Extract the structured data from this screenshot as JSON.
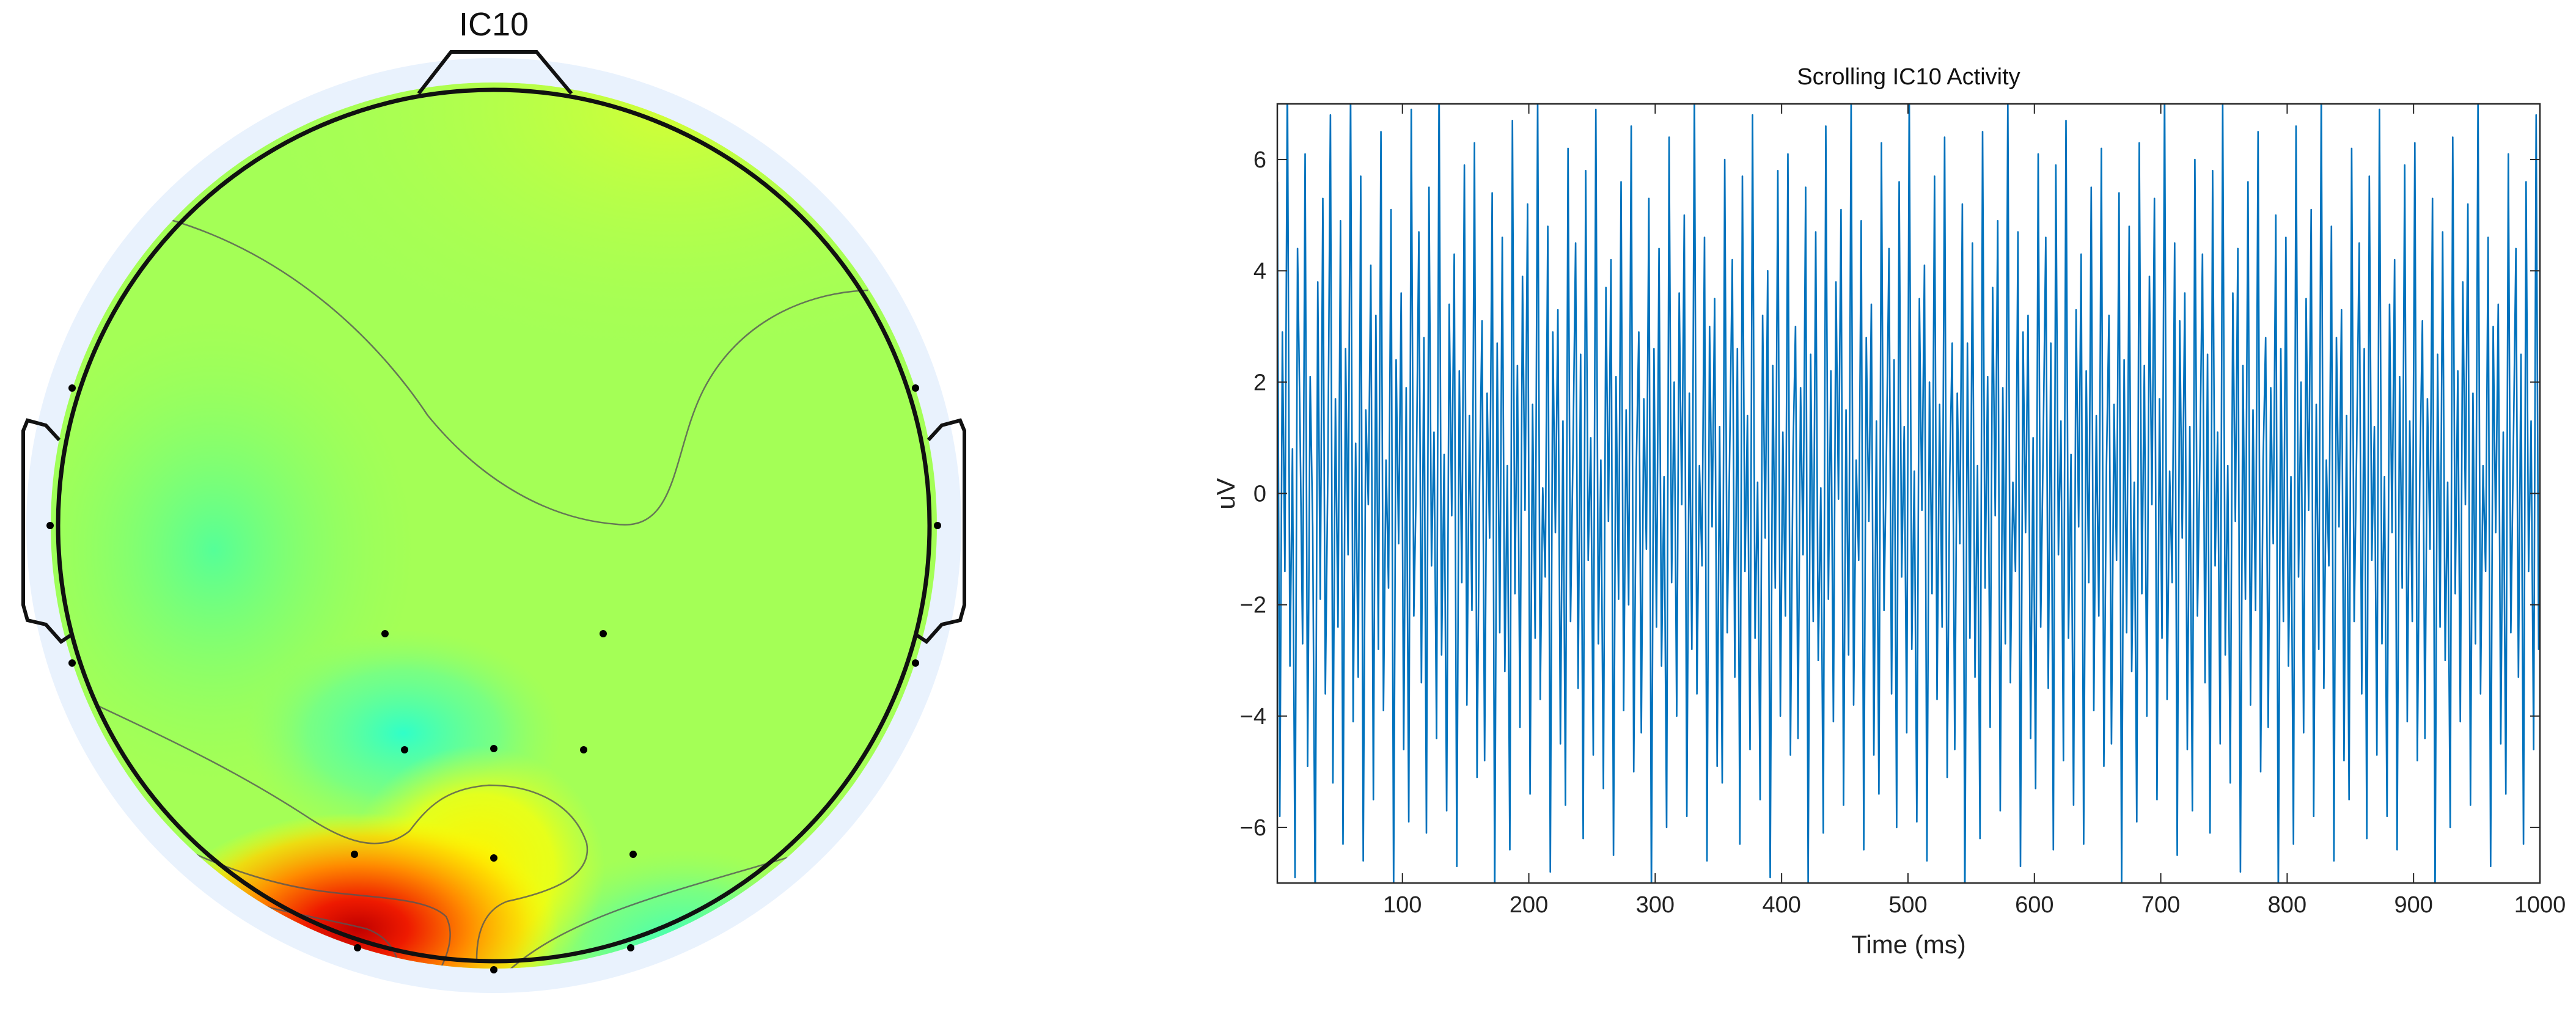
{
  "topoplot": {
    "title": "IC10",
    "colormap": "jet"
  },
  "chart_data": {
    "type": "line",
    "title": "Scrolling IC10 Activity",
    "xlabel": "Time (ms)",
    "ylabel": "uV",
    "xlim": [
      1,
      1000
    ],
    "ylim": [
      -7,
      7
    ],
    "x_ticks": [
      100,
      200,
      300,
      400,
      500,
      600,
      700,
      800,
      900,
      1000
    ],
    "y_ticks": [
      -6,
      -4,
      -2,
      0,
      2,
      4,
      6
    ],
    "grid": false,
    "line_color": "#0072BD",
    "series": [
      {
        "sample_interval_ms": 2,
        "values": [
          5.6,
          -5.8,
          2.9,
          -1.4,
          7.6,
          -3.1,
          0.8,
          -6.9,
          4.4,
          1.2,
          -2.7,
          6.1,
          -4.9,
          2.1,
          -0.6,
          -7.5,
          3.8,
          -1.9,
          5.3,
          -3.6,
          0.4,
          6.8,
          -5.2,
          1.7,
          -2.4,
          4.9,
          -6.3,
          2.6,
          -1.1,
          7.2,
          -4.1,
          0.9,
          -3.3,
          5.7,
          -6.6,
          1.5,
          -0.2,
          4.1,
          -5.5,
          3.2,
          -2.8,
          6.5,
          -3.9,
          0.6,
          -1.7,
          5.1,
          -7.1,
          2.4,
          -0.9,
          3.6,
          -4.6,
          1.9,
          -5.9,
          6.9,
          -2.2,
          0.3,
          4.7,
          -3.4,
          2.8,
          -6.1,
          5.5,
          -1.3,
          1.1,
          -4.4,
          7.4,
          -2.9,
          0.7,
          -5.7,
          3.4,
          -0.4,
          4.3,
          -6.7,
          2.2,
          -1.6,
          5.9,
          -3.8,
          1.4,
          -2.1,
          6.3,
          -5.1,
          0.2,
          3.1,
          -4.8,
          1.8,
          -0.8,
          5.4,
          -7.3,
          2.7,
          -2.5,
          4.6,
          -3.2,
          0.5,
          -6.4,
          6.7,
          -1.8,
          2.3,
          -4.2,
          3.9,
          -0.3,
          5.2,
          -5.4,
          1.6,
          -2.6,
          7.1,
          -3.7,
          0.1,
          -1.5,
          4.8,
          -6.8,
          2.9,
          -0.7,
          3.3,
          -4.5,
          1.3,
          -5.6,
          6.2,
          -2.3,
          0.8,
          4.5,
          -3.5,
          2.5,
          -6.2,
          5.8,
          -1.2,
          1.0,
          -4.7,
          6.9,
          -2.7,
          0.6,
          -5.3,
          3.7,
          -0.5,
          4.2,
          -6.5,
          2.1,
          -1.9,
          5.6,
          -3.9,
          1.5,
          -2.0,
          6.6,
          -5.0,
          0.4,
          2.9,
          -4.3,
          1.7,
          -1.0,
          5.3,
          -7.2,
          2.6,
          -2.4,
          4.4,
          -3.1,
          0.3,
          -6.0,
          6.4,
          -1.6,
          2.0,
          -4.0,
          3.6,
          -0.2,
          5.0,
          -5.8,
          1.8,
          -2.8,
          7.3,
          -3.6,
          0.5,
          -1.3,
          4.6,
          -6.6,
          3.0,
          -0.6,
          3.5,
          -4.9,
          1.2,
          -5.2,
          6.0,
          -2.5,
          0.9,
          4.2,
          -3.3,
          2.6,
          -6.3,
          5.7,
          -1.4,
          1.4,
          -4.6,
          6.8,
          -2.6,
          0.2,
          -5.5,
          3.2,
          -0.8,
          4.0,
          -6.9,
          2.3,
          -1.7,
          5.8,
          -4.0,
          1.1,
          -2.2,
          6.1,
          -4.7,
          0.7,
          3.0,
          -4.4,
          1.9,
          -1.1,
          5.5,
          -7.0,
          2.5,
          -2.3,
          4.7,
          -3.0,
          0.1,
          -6.1,
          6.6,
          -1.9,
          2.2,
          -4.1,
          3.8,
          -0.1,
          5.1,
          -5.6,
          1.5,
          -2.9,
          7.0,
          -3.8,
          0.6,
          -1.2,
          4.9,
          -6.4,
          2.8,
          -0.5,
          3.4,
          -4.7,
          1.3,
          -5.4,
          6.3,
          -2.1,
          0.8,
          4.4,
          -3.6,
          2.4,
          -6.0,
          5.6,
          -1.5,
          1.2,
          -4.3,
          7.2,
          -2.8,
          0.4,
          -5.9,
          3.5,
          -0.3,
          4.1,
          -6.6,
          2.0,
          -1.8,
          5.7,
          -3.7,
          1.6,
          -2.4,
          6.4,
          -5.1,
          0.3,
          2.7,
          -4.6,
          1.8,
          -0.9,
          5.2,
          -7.4,
          2.7,
          -2.6,
          4.5,
          -3.3,
          0.5,
          -6.2,
          6.5,
          -1.7,
          2.1,
          -4.2,
          3.7,
          -0.4,
          4.9,
          -5.7,
          1.9,
          -2.7,
          7.1,
          -3.4,
          0.2,
          -1.4,
          4.7,
          -6.7,
          2.9,
          -0.7,
          3.2,
          -4.4,
          1.0,
          -5.3,
          6.1,
          -2.4,
          0.9,
          4.6,
          -3.5,
          2.7,
          -6.4,
          5.9,
          -1.1,
          1.3,
          -4.8,
          6.7,
          -2.6,
          0.7,
          -5.6,
          3.3,
          -0.6,
          4.3,
          -6.3,
          2.2,
          -1.6,
          5.5,
          -3.9,
          1.4,
          -2.2,
          6.2,
          -4.9,
          0.5,
          3.2,
          -4.5,
          1.6,
          -1.2,
          5.4,
          -7.1,
          2.4,
          -2.5,
          4.8,
          -3.2,
          0.2,
          -5.9,
          6.3,
          -1.8,
          2.3,
          -4.0,
          3.9,
          -0.2,
          5.3,
          -5.5,
          1.7,
          -2.6,
          7.3,
          -3.7,
          0.4,
          -1.6,
          4.5,
          -6.5,
          3.1,
          -0.8,
          3.6,
          -4.6,
          1.2,
          -5.7,
          6.0,
          -2.2,
          0.7,
          4.3,
          -3.4,
          2.5,
          -6.1,
          5.8,
          -1.3,
          1.1,
          -4.5,
          7.0,
          -2.9,
          0.5,
          -5.2,
          3.6,
          -0.5,
          4.4,
          -6.8,
          2.3,
          -1.9,
          5.6,
          -3.8,
          1.5,
          -2.1,
          6.5,
          -5.0,
          0.6,
          2.8,
          -4.2,
          1.9,
          -0.9,
          5.0,
          -7.3,
          2.6,
          -2.3,
          4.6,
          -3.1,
          0.3,
          -6.3,
          6.6,
          -1.5,
          2.0,
          -4.3,
          3.5,
          -0.3,
          5.1,
          -5.8,
          1.6,
          -2.8,
          7.2,
          -3.5,
          0.6,
          -1.3,
          4.8,
          -6.6,
          2.8,
          -0.6,
          3.3,
          -4.8,
          1.4,
          -5.5,
          6.2,
          -2.3,
          0.8,
          4.5,
          -3.6,
          2.6,
          -6.2,
          5.7,
          -1.2,
          1.2,
          -4.7,
          6.9,
          -2.7,
          0.3,
          -5.8,
          3.4,
          -0.7,
          4.2,
          -6.4,
          2.1,
          -1.7,
          5.9,
          -4.1,
          1.3,
          -2.3,
          6.3,
          -4.8,
          0.4,
          3.1,
          -4.4,
          1.7,
          -1.0,
          5.3,
          -7.2,
          2.5,
          -2.4,
          4.7,
          -3.0,
          0.2,
          -6.0,
          6.4,
          -1.8,
          2.2,
          -4.1,
          3.8,
          -0.2,
          5.2,
          -5.6,
          1.8,
          -2.7,
          7.1,
          -3.6,
          0.5,
          -1.4,
          4.6,
          -6.7,
          3.0,
          -0.7,
          3.4,
          -4.5,
          1.1,
          -5.4,
          6.1,
          -2.5,
          0.9,
          4.4,
          -3.3,
          2.5,
          -6.3,
          5.6,
          -1.4,
          1.3,
          -4.6,
          6.8,
          -2.8,
          0.6,
          -5.5,
          3.5,
          -0.4,
          4.1,
          -6.5,
          2.2,
          -1.8,
          5.6,
          -3.9,
          1.4,
          -2.2,
          6.4,
          -5.0,
          0.3,
          2.9,
          -4.7,
          1.8,
          -1.1,
          5.4,
          -7.0,
          2.6,
          -2.5,
          4.5,
          -3.2,
          0.4,
          -6.1,
          6.5,
          -1.6,
          2.1,
          -4.2,
          3.7,
          -0.3,
          5.0,
          -5.7,
          1.7,
          -2.9,
          7.4,
          -3.4,
          0.3,
          -1.5,
          4.7,
          -6.4,
          2.9,
          -0.6,
          3.5,
          -4.7,
          1.3,
          -5.6,
          6.3,
          -2.2,
          0.7,
          4.6,
          -3.5,
          2.4,
          -6.2,
          5.8,
          -1.2,
          1.1,
          -4.4,
          7.1,
          -2.6,
          0.5,
          -5.7,
          3.3,
          -0.5,
          4.3,
          -6.6,
          2.0,
          -1.7,
          5.7,
          -3.8,
          1.5
        ]
      }
    ]
  }
}
